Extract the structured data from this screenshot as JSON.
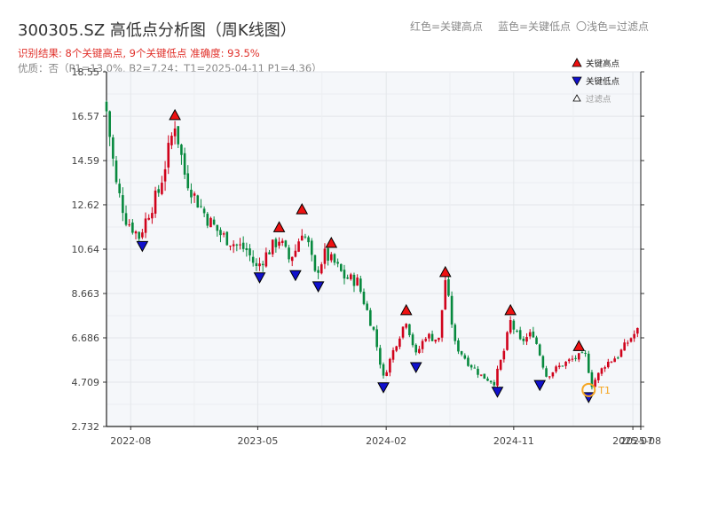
{
  "header": {
    "title": "300305.SZ 高低点分析图（周K线图）",
    "result_line": "识别结果: 8个关键高点, 9个关键低点  准确度: 93.5%",
    "quality_line": "优质：否（P1=13.0%, B2=7.24；T1=2025-04-11 P1=4.36）",
    "legend_red": "红色=关键高点",
    "legend_blue": "蓝色=关键低点",
    "legend_light": "〇浅色=过滤点"
  },
  "colors": {
    "up": "#d0021b",
    "down": "#07893e",
    "high_marker": "#ee1111",
    "low_marker": "#1010cc",
    "t1": "#f5a623",
    "plot_bg": "#f5f7fa",
    "grid": "#e3e6ea"
  },
  "chart_data": {
    "type": "candlestick",
    "title": "300305.SZ 高低点分析图（周K线图）",
    "y_ticks": [
      "18.55",
      "16.57",
      "14.59",
      "12.62",
      "10.64",
      "8.663",
      "6.686",
      "4.709",
      "2.732"
    ],
    "ylim": [
      2.732,
      18.55
    ],
    "xlim": [
      "2022-06-10",
      "2025-08-01"
    ],
    "x_ticks": [
      {
        "date": "2022-08-01",
        "label": "2022-08"
      },
      {
        "date": "2023-05-01",
        "label": "2023-05"
      },
      {
        "date": "2024-02-01",
        "label": "2024-02"
      },
      {
        "date": "2024-11-01",
        "label": "2024-11"
      },
      {
        "date": "2025-07-15",
        "label": "2025-07"
      },
      {
        "date": "2025-08-01",
        "label": "2025-08"
      }
    ],
    "grid": true,
    "legend_position": "top-right",
    "legend": [
      {
        "label": "关键高点",
        "symbol": "triangle-up",
        "color": "#ee1111"
      },
      {
        "label": "关键低点",
        "symbol": "triangle-down",
        "color": "#1010cc"
      },
      {
        "label": "过滤点",
        "symbol": "triangle-up-hollow",
        "color": "#ffffff"
      }
    ],
    "series": [
      {
        "name": "weekly_close",
        "points": [
          [
            "2022-06-10",
            16.8
          ],
          [
            "2022-07-01",
            13.5
          ],
          [
            "2022-07-22",
            12.0
          ],
          [
            "2022-08-19",
            11.2
          ],
          [
            "2022-09-09",
            12.3
          ],
          [
            "2022-09-30",
            13.2
          ],
          [
            "2022-10-21",
            15.0
          ],
          [
            "2022-11-04",
            16.3
          ],
          [
            "2022-11-25",
            14.0
          ],
          [
            "2022-12-16",
            13.0
          ],
          [
            "2023-01-13",
            12.0
          ],
          [
            "2023-02-10",
            11.3
          ],
          [
            "2023-03-10",
            10.9
          ],
          [
            "2023-04-07",
            10.6
          ],
          [
            "2023-04-28",
            9.8
          ],
          [
            "2023-05-26",
            10.6
          ],
          [
            "2023-06-16",
            11.1
          ],
          [
            "2023-07-07",
            10.2
          ],
          [
            "2023-07-21",
            10.6
          ],
          [
            "2023-08-04",
            11.5
          ],
          [
            "2023-08-18",
            10.8
          ],
          [
            "2023-09-01",
            9.5
          ],
          [
            "2023-09-22",
            10.4
          ],
          [
            "2023-10-13",
            10.0
          ],
          [
            "2023-11-03",
            9.4
          ],
          [
            "2023-12-01",
            9.2
          ],
          [
            "2024-01-05",
            7.0
          ],
          [
            "2024-01-26",
            4.9
          ],
          [
            "2024-02-23",
            6.5
          ],
          [
            "2024-03-15",
            7.5
          ],
          [
            "2024-04-05",
            5.9
          ],
          [
            "2024-04-26",
            6.8
          ],
          [
            "2024-05-24",
            6.6
          ],
          [
            "2024-06-07",
            9.3
          ],
          [
            "2024-06-28",
            6.4
          ],
          [
            "2024-07-26",
            5.6
          ],
          [
            "2024-08-23",
            5.0
          ],
          [
            "2024-09-20",
            4.7
          ],
          [
            "2024-10-11",
            6.1
          ],
          [
            "2024-10-25",
            7.4
          ],
          [
            "2024-11-15",
            6.5
          ],
          [
            "2024-12-13",
            6.9
          ],
          [
            "2025-01-10",
            5.0
          ],
          [
            "2025-02-14",
            5.5
          ],
          [
            "2025-03-14",
            5.8
          ],
          [
            "2025-04-04",
            5.9
          ],
          [
            "2025-04-18",
            4.6
          ],
          [
            "2025-05-16",
            5.5
          ],
          [
            "2025-06-13",
            5.9
          ],
          [
            "2025-07-11",
            6.7
          ],
          [
            "2025-07-25",
            7.0
          ]
        ]
      }
    ],
    "key_highs": [
      {
        "date": "2022-11-04",
        "value": 16.3
      },
      {
        "date": "2023-06-16",
        "value": 11.3
      },
      {
        "date": "2023-08-04",
        "value": 12.1
      },
      {
        "date": "2023-10-06",
        "value": 10.6
      },
      {
        "date": "2024-03-15",
        "value": 7.6
      },
      {
        "date": "2024-06-07",
        "value": 9.3
      },
      {
        "date": "2024-10-25",
        "value": 7.6
      },
      {
        "date": "2025-03-21",
        "value": 6.0
      }
    ],
    "key_lows": [
      {
        "date": "2022-08-26",
        "value": 11.1
      },
      {
        "date": "2023-05-05",
        "value": 9.7
      },
      {
        "date": "2023-07-21",
        "value": 9.8
      },
      {
        "date": "2023-09-08",
        "value": 9.3
      },
      {
        "date": "2024-01-26",
        "value": 4.8
      },
      {
        "date": "2024-04-05",
        "value": 5.7
      },
      {
        "date": "2024-09-27",
        "value": 4.6
      },
      {
        "date": "2024-12-27",
        "value": 4.9
      },
      {
        "date": "2025-04-11",
        "value": 4.36
      }
    ],
    "annotations": [
      {
        "label": "T1",
        "date": "2025-04-11",
        "value": 4.36
      }
    ]
  }
}
